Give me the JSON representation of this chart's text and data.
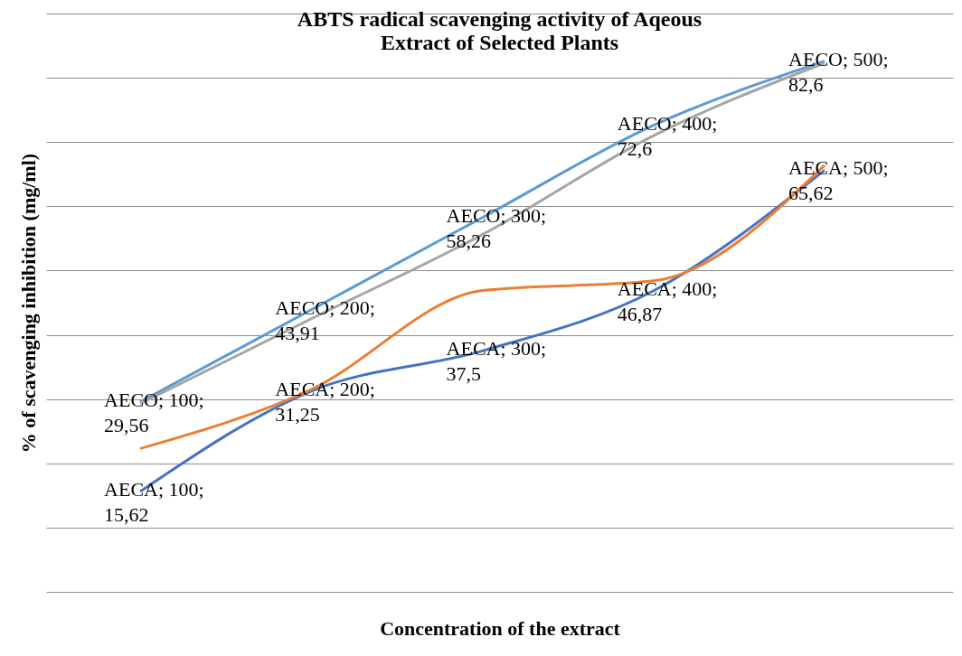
{
  "chart_data": {
    "type": "line",
    "title": [
      "ABTS radical scavenging activity of  Aqeous",
      "Extract of  Selected Plants"
    ],
    "xlabel": "Concentration of the extract",
    "ylabel": "% of scavenging inhibition (mg/ml)",
    "categories": [
      null,
      null,
      null,
      null,
      null
    ],
    "ylim": [
      0,
      90
    ],
    "yticks": [
      {
        "value": 0,
        "label": null
      },
      {
        "value": 10,
        "label": null
      },
      {
        "value": 20,
        "label": null
      },
      {
        "value": 30,
        "label": null
      },
      {
        "value": 40,
        "label": null
      },
      {
        "value": 50,
        "label": null
      },
      {
        "value": 60,
        "label": null
      },
      {
        "value": 70,
        "label": null
      },
      {
        "value": 80,
        "label": null
      },
      {
        "value": 90,
        "label": null
      }
    ],
    "tick_labels": false,
    "grid": "y",
    "series": [
      {
        "color": "#5b9bd5",
        "values": [
          29.56,
          43.91,
          58.26,
          72.6,
          82.6
        ],
        "value_labels": [
          "AECO; 100; 29,56",
          "AECO; 200; 43,91",
          "AECO; 300; 58,26",
          "AECO; 400; 72,6",
          "AECO; 500; 82,6"
        ]
      },
      {
        "color": "#4472c4",
        "values": [
          15.62,
          31.25,
          37.5,
          46.87,
          65.62
        ],
        "value_labels": [
          "AECA; 100; 15,62",
          "AECA; 200; 31,25",
          "AECA; 300; 37,5",
          "AECA; 400; 46,87",
          "AECA; 500; 65,62"
        ]
      },
      {
        "color": "#ed7d31",
        "values": [
          22.3,
          31.5,
          46.9,
          48.4,
          66.4
        ]
      },
      {
        "color": "#a5a5a5",
        "values": [
          29.3,
          42.5,
          55.6,
          71.0,
          82.3
        ]
      }
    ]
  }
}
